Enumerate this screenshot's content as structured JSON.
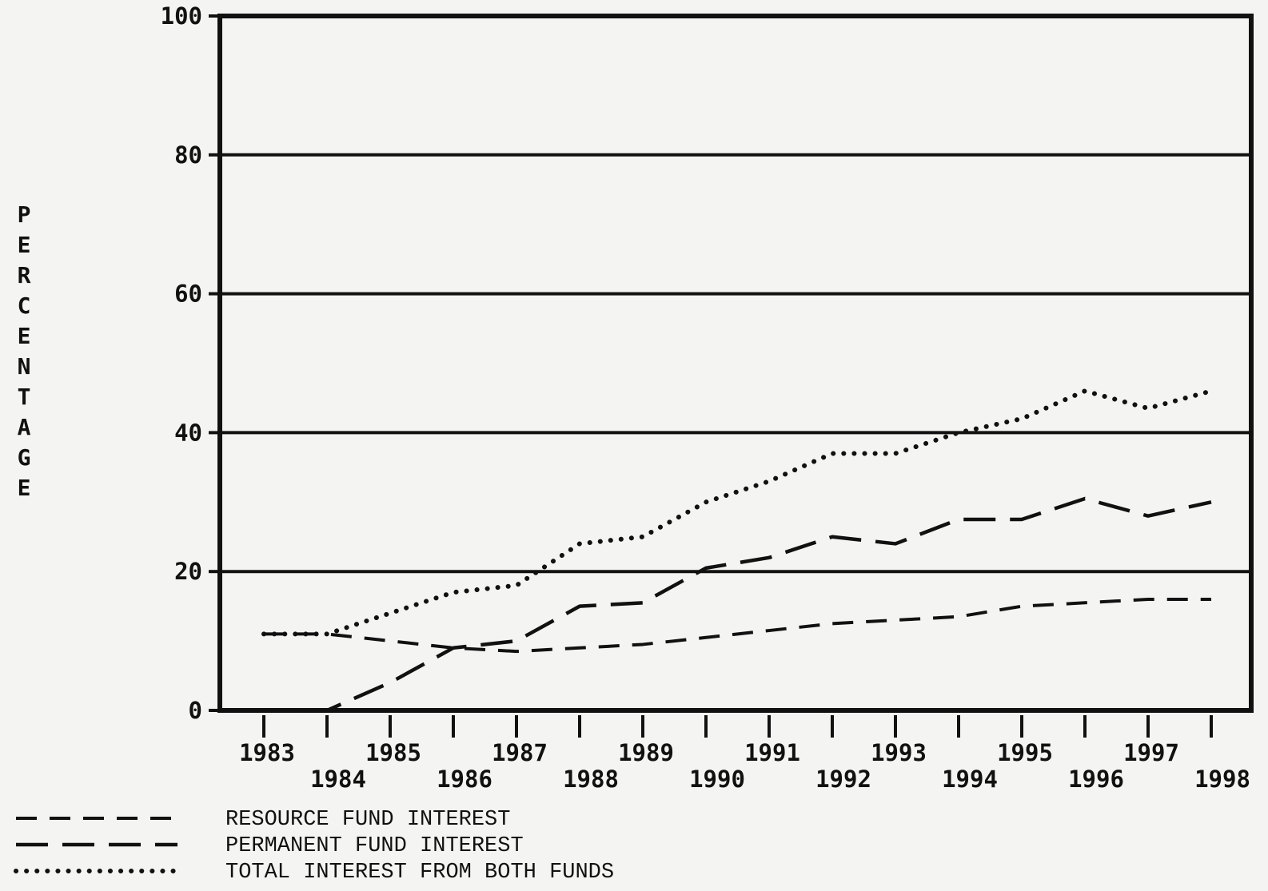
{
  "chart_data": {
    "type": "line",
    "ylabel": "PERCENTAGE",
    "xlabel": "",
    "title": "",
    "ylim": [
      0,
      100
    ],
    "yticks": [
      0,
      20,
      40,
      60,
      80,
      100
    ],
    "ytick_labels": [
      "0",
      "20",
      "40",
      "60",
      "80",
      "100"
    ],
    "x": [
      "1983",
      "1984",
      "1985",
      "1986",
      "1987",
      "1988",
      "1989",
      "1990",
      "1991",
      "1992",
      "1993",
      "1994",
      "1995",
      "1996",
      "1997",
      "1998"
    ],
    "grid": "horizontal",
    "legend_position": "bottom-left",
    "series": [
      {
        "name": "RESOURCE FUND INTEREST",
        "style": "dashed",
        "values": [
          11,
          11,
          10,
          9,
          8.5,
          9,
          9.5,
          10.5,
          11.5,
          12.5,
          13,
          13.5,
          15,
          15.5,
          16,
          16
        ]
      },
      {
        "name": "PERMANENT FUND INTEREST",
        "style": "long-dash",
        "values": [
          0,
          0,
          4,
          9,
          10,
          15,
          15.5,
          20.5,
          22,
          25,
          24,
          27.5,
          27.5,
          30.5,
          28,
          30
        ]
      },
      {
        "name": "TOTAL INTEREST FROM BOTH FUNDS",
        "style": "dotted",
        "values": [
          11,
          11,
          14,
          17,
          18,
          24,
          25,
          30,
          33,
          37,
          37,
          40,
          42,
          46,
          43.5,
          46
        ]
      }
    ]
  }
}
